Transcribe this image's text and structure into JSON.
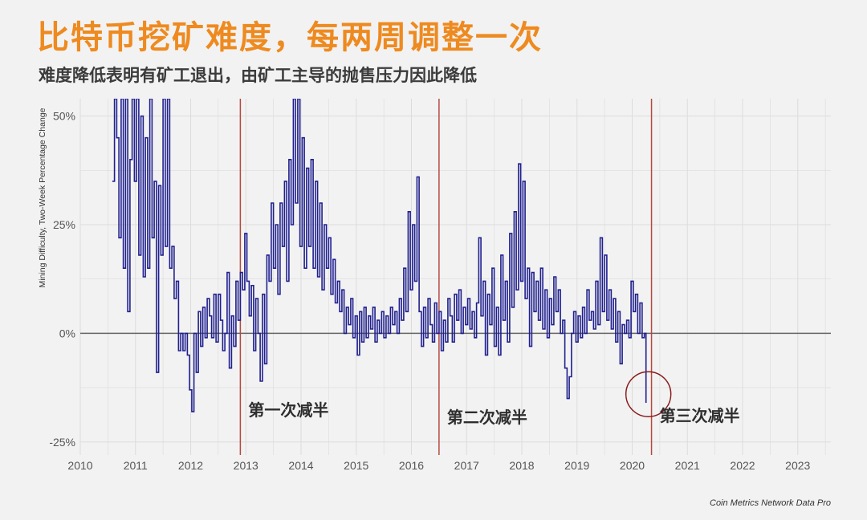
{
  "header": {
    "title": "比特币挖矿难度，每两周调整一次",
    "subtitle": "难度降低表明有矿工退出，由矿工主导的抛售压力因此降低"
  },
  "colors": {
    "title": "#ee8a1f",
    "line": "#1f1f8f",
    "halving": "#b5493e",
    "zero_line": "#666666",
    "circle": "#8b1a1a"
  },
  "chart_data": {
    "type": "line",
    "ylabel": "Mining Difficulty, Two-Week Percentage Change",
    "xlim": [
      2010,
      2023.6
    ],
    "ylim": [
      -28,
      54
    ],
    "x_ticks": [
      "2010",
      "2011",
      "2012",
      "2013",
      "2014",
      "2015",
      "2016",
      "2017",
      "2018",
      "2019",
      "2020",
      "2021",
      "2022",
      "2023"
    ],
    "y_ticks": [
      {
        "value": 50,
        "label": "50%"
      },
      {
        "value": 25,
        "label": "25%"
      },
      {
        "value": 0,
        "label": "0%"
      },
      {
        "value": -25,
        "label": "-25%"
      }
    ],
    "halvings": [
      {
        "x": 2012.9,
        "label": "第一次减半"
      },
      {
        "x": 2016.5,
        "label": "第二次减半"
      },
      {
        "x": 2020.35,
        "label": "第三次减半"
      }
    ],
    "highlight": {
      "x": 2020.25,
      "y": -14
    },
    "source": "Coin Metrics Network Data Pro",
    "series": [
      {
        "values": [
          [
            2010.58,
            35
          ],
          [
            2010.62,
            54
          ],
          [
            2010.66,
            45
          ],
          [
            2010.7,
            22
          ],
          [
            2010.74,
            54
          ],
          [
            2010.78,
            15
          ],
          [
            2010.82,
            54
          ],
          [
            2010.86,
            5
          ],
          [
            2010.9,
            40
          ],
          [
            2010.94,
            54
          ],
          [
            2010.98,
            35
          ],
          [
            2011.02,
            54
          ],
          [
            2011.06,
            18
          ],
          [
            2011.1,
            50
          ],
          [
            2011.14,
            13
          ],
          [
            2011.18,
            45
          ],
          [
            2011.22,
            15
          ],
          [
            2011.26,
            54
          ],
          [
            2011.3,
            22
          ],
          [
            2011.34,
            35
          ],
          [
            2011.38,
            -9
          ],
          [
            2011.42,
            34
          ],
          [
            2011.46,
            18
          ],
          [
            2011.5,
            54
          ],
          [
            2011.54,
            20
          ],
          [
            2011.58,
            54
          ],
          [
            2011.62,
            15
          ],
          [
            2011.66,
            20
          ],
          [
            2011.7,
            8
          ],
          [
            2011.74,
            12
          ],
          [
            2011.78,
            -4
          ],
          [
            2011.82,
            0
          ],
          [
            2011.86,
            -4
          ],
          [
            2011.9,
            0
          ],
          [
            2011.94,
            -5
          ],
          [
            2011.98,
            -13
          ],
          [
            2012.02,
            -18
          ],
          [
            2012.06,
            0
          ],
          [
            2012.1,
            -9
          ],
          [
            2012.14,
            5
          ],
          [
            2012.18,
            -3
          ],
          [
            2012.22,
            6
          ],
          [
            2012.26,
            -1
          ],
          [
            2012.3,
            8
          ],
          [
            2012.34,
            4
          ],
          [
            2012.38,
            -1
          ],
          [
            2012.42,
            9
          ],
          [
            2012.46,
            -2
          ],
          [
            2012.5,
            9
          ],
          [
            2012.54,
            3
          ],
          [
            2012.58,
            -4
          ],
          [
            2012.62,
            0
          ],
          [
            2012.66,
            14
          ],
          [
            2012.7,
            -8
          ],
          [
            2012.74,
            4
          ],
          [
            2012.78,
            -3
          ],
          [
            2012.82,
            12
          ],
          [
            2012.86,
            3
          ],
          [
            2012.9,
            14
          ],
          [
            2012.94,
            10
          ],
          [
            2012.98,
            23
          ],
          [
            2013.02,
            12
          ],
          [
            2013.06,
            4
          ],
          [
            2013.1,
            11
          ],
          [
            2013.14,
            -4
          ],
          [
            2013.18,
            8
          ],
          [
            2013.22,
            0
          ],
          [
            2013.26,
            -11
          ],
          [
            2013.3,
            9
          ],
          [
            2013.34,
            -7
          ],
          [
            2013.38,
            18
          ],
          [
            2013.42,
            12
          ],
          [
            2013.46,
            30
          ],
          [
            2013.5,
            15
          ],
          [
            2013.54,
            25
          ],
          [
            2013.58,
            9
          ],
          [
            2013.62,
            30
          ],
          [
            2013.66,
            20
          ],
          [
            2013.7,
            35
          ],
          [
            2013.74,
            12
          ],
          [
            2013.78,
            40
          ],
          [
            2013.82,
            25
          ],
          [
            2013.86,
            54
          ],
          [
            2013.9,
            30
          ],
          [
            2013.94,
            54
          ],
          [
            2013.98,
            20
          ],
          [
            2014.02,
            45
          ],
          [
            2014.06,
            15
          ],
          [
            2014.1,
            38
          ],
          [
            2014.14,
            20
          ],
          [
            2014.18,
            40
          ],
          [
            2014.22,
            15
          ],
          [
            2014.26,
            35
          ],
          [
            2014.3,
            13
          ],
          [
            2014.34,
            30
          ],
          [
            2014.38,
            10
          ],
          [
            2014.42,
            25
          ],
          [
            2014.46,
            15
          ],
          [
            2014.5,
            22
          ],
          [
            2014.54,
            9
          ],
          [
            2014.58,
            17
          ],
          [
            2014.62,
            7
          ],
          [
            2014.66,
            12
          ],
          [
            2014.7,
            5
          ],
          [
            2014.74,
            10
          ],
          [
            2014.78,
            0
          ],
          [
            2014.82,
            6
          ],
          [
            2014.86,
            2
          ],
          [
            2014.9,
            8
          ],
          [
            2014.94,
            -1
          ],
          [
            2014.98,
            4
          ],
          [
            2015.02,
            -5
          ],
          [
            2015.06,
            5
          ],
          [
            2015.1,
            -2
          ],
          [
            2015.14,
            6
          ],
          [
            2015.18,
            -1
          ],
          [
            2015.22,
            4
          ],
          [
            2015.26,
            1
          ],
          [
            2015.3,
            6
          ],
          [
            2015.34,
            -2
          ],
          [
            2015.38,
            3
          ],
          [
            2015.42,
            0
          ],
          [
            2015.46,
            5
          ],
          [
            2015.5,
            -1
          ],
          [
            2015.54,
            4
          ],
          [
            2015.58,
            0
          ],
          [
            2015.62,
            6
          ],
          [
            2015.66,
            2
          ],
          [
            2015.7,
            5
          ],
          [
            2015.74,
            0
          ],
          [
            2015.78,
            8
          ],
          [
            2015.82,
            3
          ],
          [
            2015.86,
            15
          ],
          [
            2015.9,
            5
          ],
          [
            2015.94,
            28
          ],
          [
            2015.98,
            10
          ],
          [
            2016.02,
            25
          ],
          [
            2016.06,
            12
          ],
          [
            2016.1,
            36
          ],
          [
            2016.14,
            5
          ],
          [
            2016.18,
            -3
          ],
          [
            2016.22,
            6
          ],
          [
            2016.26,
            -1
          ],
          [
            2016.3,
            8
          ],
          [
            2016.34,
            2
          ],
          [
            2016.38,
            -2
          ],
          [
            2016.42,
            7
          ],
          [
            2016.46,
            0
          ],
          [
            2016.5,
            5
          ],
          [
            2016.54,
            -4
          ],
          [
            2016.58,
            3
          ],
          [
            2016.62,
            -2
          ],
          [
            2016.66,
            8
          ],
          [
            2016.7,
            4
          ],
          [
            2016.74,
            -2
          ],
          [
            2016.78,
            9
          ],
          [
            2016.82,
            3
          ],
          [
            2016.86,
            10
          ],
          [
            2016.9,
            0
          ],
          [
            2016.94,
            6
          ],
          [
            2016.98,
            2
          ],
          [
            2017.02,
            8
          ],
          [
            2017.06,
            1
          ],
          [
            2017.1,
            5
          ],
          [
            2017.14,
            -1
          ],
          [
            2017.18,
            7
          ],
          [
            2017.22,
            22
          ],
          [
            2017.26,
            4
          ],
          [
            2017.3,
            12
          ],
          [
            2017.34,
            -5
          ],
          [
            2017.38,
            9
          ],
          [
            2017.42,
            2
          ],
          [
            2017.46,
            15
          ],
          [
            2017.5,
            -3
          ],
          [
            2017.54,
            6
          ],
          [
            2017.58,
            -5
          ],
          [
            2017.62,
            18
          ],
          [
            2017.66,
            3
          ],
          [
            2017.7,
            12
          ],
          [
            2017.74,
            -2
          ],
          [
            2017.78,
            23
          ],
          [
            2017.82,
            6
          ],
          [
            2017.86,
            28
          ],
          [
            2017.9,
            10
          ],
          [
            2017.94,
            39
          ],
          [
            2017.98,
            12
          ],
          [
            2018.02,
            35
          ],
          [
            2018.06,
            8
          ],
          [
            2018.1,
            15
          ],
          [
            2018.14,
            -3
          ],
          [
            2018.18,
            14
          ],
          [
            2018.22,
            5
          ],
          [
            2018.26,
            12
          ],
          [
            2018.3,
            3
          ],
          [
            2018.34,
            15
          ],
          [
            2018.38,
            1
          ],
          [
            2018.42,
            10
          ],
          [
            2018.46,
            -1
          ],
          [
            2018.5,
            8
          ],
          [
            2018.54,
            2
          ],
          [
            2018.58,
            13
          ],
          [
            2018.62,
            5
          ],
          [
            2018.66,
            10
          ],
          [
            2018.7,
            0
          ],
          [
            2018.74,
            3
          ],
          [
            2018.78,
            -8
          ],
          [
            2018.82,
            -15
          ],
          [
            2018.86,
            -10
          ],
          [
            2018.9,
            0
          ],
          [
            2018.94,
            5
          ],
          [
            2018.98,
            -2
          ],
          [
            2019.02,
            4
          ],
          [
            2019.06,
            -1
          ],
          [
            2019.1,
            6
          ],
          [
            2019.14,
            0
          ],
          [
            2019.18,
            10
          ],
          [
            2019.22,
            3
          ],
          [
            2019.26,
            5
          ],
          [
            2019.3,
            1
          ],
          [
            2019.34,
            12
          ],
          [
            2019.38,
            2
          ],
          [
            2019.42,
            22
          ],
          [
            2019.46,
            5
          ],
          [
            2019.5,
            18
          ],
          [
            2019.54,
            3
          ],
          [
            2019.58,
            10
          ],
          [
            2019.62,
            1
          ],
          [
            2019.66,
            8
          ],
          [
            2019.7,
            -2
          ],
          [
            2019.74,
            5
          ],
          [
            2019.78,
            -7
          ],
          [
            2019.82,
            2
          ],
          [
            2019.86,
            0
          ],
          [
            2019.9,
            3
          ],
          [
            2019.94,
            -1
          ],
          [
            2019.98,
            12
          ],
          [
            2020.02,
            5
          ],
          [
            2020.06,
            9
          ],
          [
            2020.1,
            0
          ],
          [
            2020.14,
            7
          ],
          [
            2020.18,
            -1
          ],
          [
            2020.22,
            0
          ],
          [
            2020.25,
            -16
          ]
        ]
      }
    ]
  }
}
